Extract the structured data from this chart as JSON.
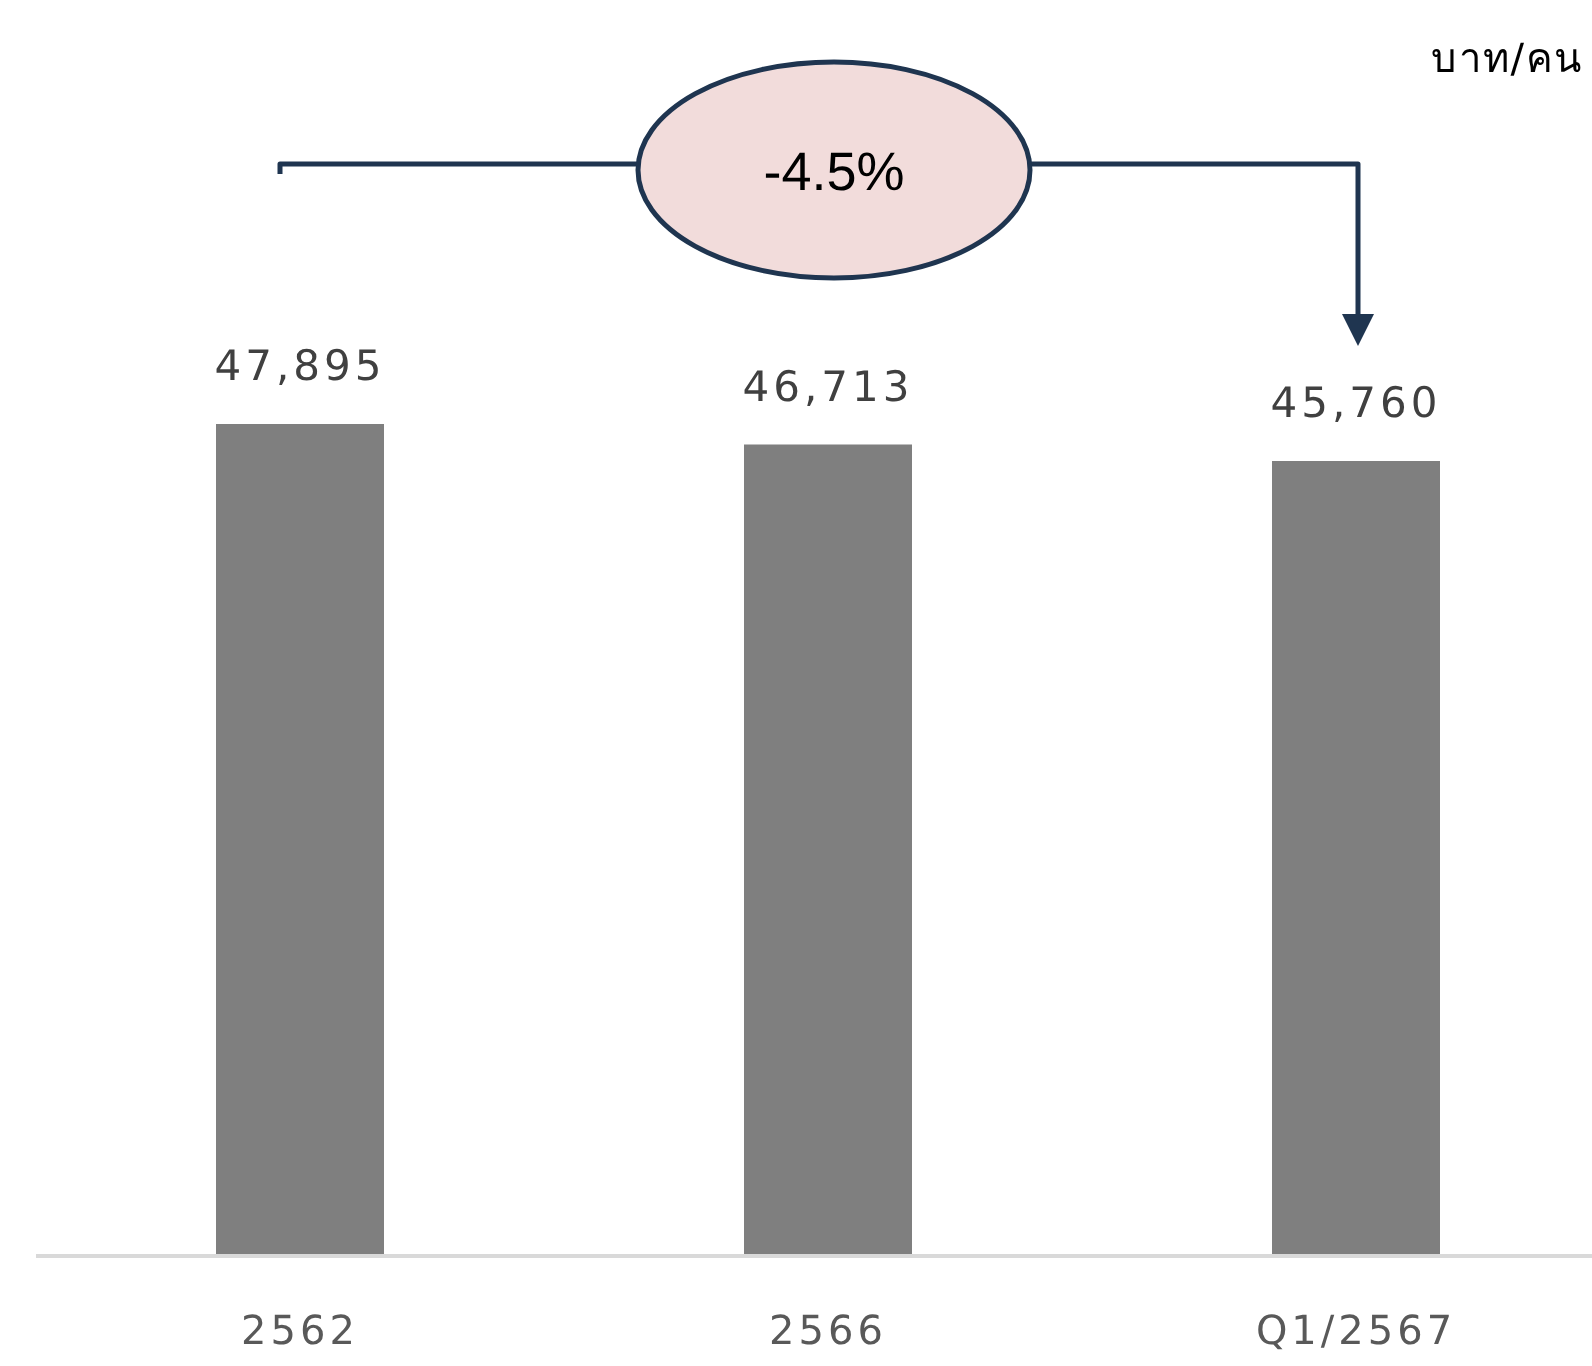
{
  "chart_data": {
    "type": "bar",
    "categories": [
      "2562",
      "2566",
      "Q1/2567"
    ],
    "values": [
      47895,
      46713,
      45760
    ],
    "value_labels": [
      "47,895",
      "46,713",
      "45,760"
    ],
    "color": "#7f7f7f",
    "tick_labels": "x",
    "annotations": [
      "บาท/คน",
      "-4.5%"
    ]
  }
}
